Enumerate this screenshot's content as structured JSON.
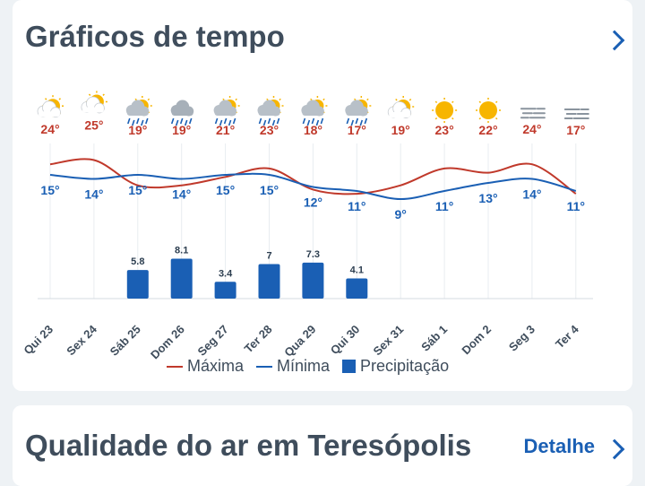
{
  "weather_card": {
    "title": "Gráficos de tempo",
    "legend": {
      "max_label": "Máxima",
      "min_label": "Mínima",
      "precip_label": "Precipitação"
    }
  },
  "colors": {
    "max": "#c0392b",
    "min": "#1a5fb4",
    "precip": "#1a5fb4",
    "title": "#3f4d5c"
  },
  "chart_data": {
    "type": "line",
    "title": "Gráficos de tempo",
    "categories": [
      "Qui 23",
      "Sex 24",
      "Sáb 25",
      "Dom 26",
      "Seg 27",
      "Ter 28",
      "Qua 29",
      "Qui 30",
      "Sex 31",
      "Sáb 1",
      "Dom 2",
      "Seg 3",
      "Ter 4"
    ],
    "icons": [
      "partly-sunny-icon",
      "partly-sunny-icon",
      "rain-sun-icon",
      "rain-cloud-icon",
      "rain-sun-icon",
      "rain-sun-icon",
      "rain-sun-icon",
      "rain-sun-icon",
      "partly-sunny-icon",
      "sun-icon",
      "sun-icon",
      "fog-icon",
      "fog-icon"
    ],
    "series": [
      {
        "name": "Máxima",
        "unit": "°",
        "values": [
          24,
          25,
          19,
          19,
          21,
          23,
          18,
          17,
          19,
          23,
          22,
          24,
          17
        ]
      },
      {
        "name": "Mínima",
        "unit": "°",
        "values": [
          15,
          14,
          15,
          14,
          15,
          15,
          12,
          11,
          9,
          11,
          13,
          14,
          11
        ]
      },
      {
        "name": "Precipitação",
        "unit": "mm",
        "type": "bar",
        "values": [
          null,
          null,
          5.8,
          8.1,
          3.4,
          7,
          7.3,
          4.1,
          null,
          null,
          null,
          null,
          null
        ]
      }
    ]
  },
  "air_card": {
    "title": "Qualidade do ar em Teresópolis",
    "link_label": "Detalhe"
  }
}
